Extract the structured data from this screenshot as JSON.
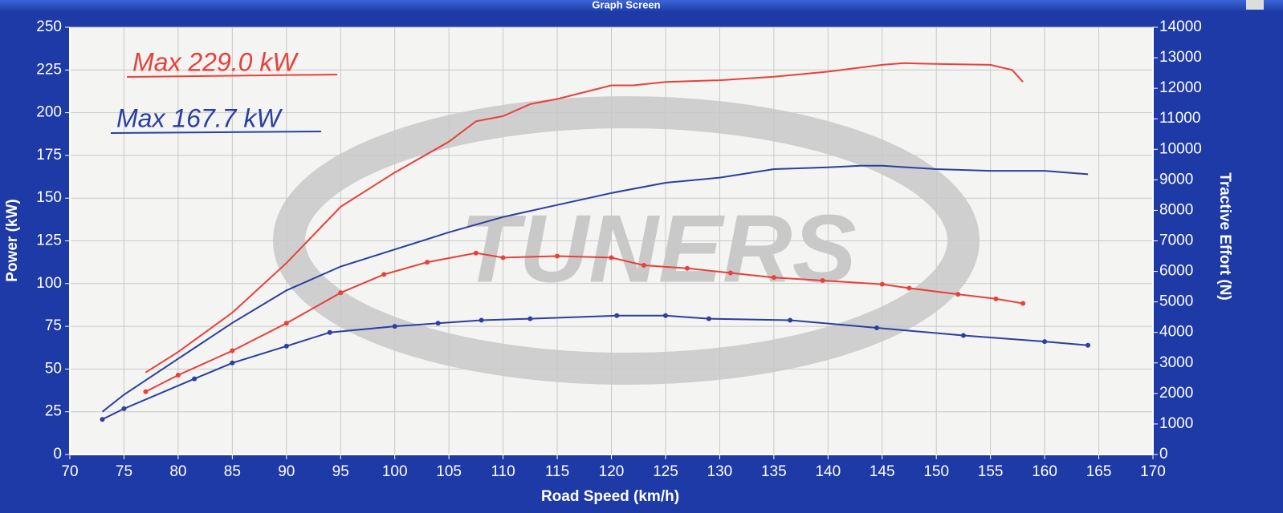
{
  "window_title": "Graph Screen",
  "chart_data": {
    "type": "line",
    "xlabel": "Road Speed (km/h)",
    "ylabel": "Power (kW)",
    "y2label": "Tractive Effort (N)",
    "watermark": "TUNERS",
    "annotations": [
      {
        "text": "Max 229.0 kW",
        "color": "#e8403a"
      },
      {
        "text": "Max 167.7 kW",
        "color": "#2a3fa0"
      }
    ],
    "xlim": [
      70,
      170
    ],
    "xticks": [
      70,
      75,
      80,
      85,
      90,
      95,
      100,
      105,
      110,
      115,
      120,
      125,
      130,
      135,
      140,
      145,
      150,
      155,
      160,
      165,
      170
    ],
    "ylim": [
      0,
      250
    ],
    "yticks": [
      0,
      25,
      50,
      75,
      100,
      125,
      150,
      175,
      200,
      225,
      250
    ],
    "y2lim": [
      0,
      14000
    ],
    "y2ticks": [
      0,
      1000,
      2000,
      3000,
      4000,
      5000,
      6000,
      7000,
      8000,
      9000,
      10000,
      11000,
      12000,
      13000,
      14000
    ],
    "grid": true,
    "series": [
      {
        "color": "#e8403a",
        "axis": "y",
        "markers": false,
        "x": [
          77,
          80,
          85,
          90,
          95,
          100,
          105,
          107.5,
          110,
          112.5,
          115,
          120,
          122,
          125,
          130,
          135,
          140,
          145,
          147,
          150,
          155,
          157,
          158
        ],
        "values": [
          48,
          60,
          83,
          112,
          145,
          165,
          183,
          195,
          198,
          205,
          208,
          216,
          216,
          218,
          219,
          221,
          224,
          228,
          229,
          228.5,
          228,
          225,
          218
        ]
      },
      {
        "color": "#2a3fa0",
        "axis": "y",
        "markers": false,
        "x": [
          73,
          75,
          80,
          85,
          90,
          95,
          100,
          105,
          110,
          115,
          120,
          125,
          130,
          135,
          140,
          143,
          145,
          150,
          155,
          160,
          164
        ],
        "values": [
          25,
          35,
          56,
          77,
          96,
          110,
          120,
          130,
          139,
          146,
          153,
          159,
          162,
          167,
          168,
          169,
          169,
          167,
          166,
          166,
          164
        ]
      },
      {
        "color": "#e8403a",
        "axis": "y2",
        "markers": true,
        "x": [
          77,
          80,
          85,
          90,
          95,
          99,
          103,
          107.5,
          110,
          115,
          120,
          123,
          127,
          131,
          135,
          139.5,
          145,
          147.5,
          152,
          155.5,
          158
        ],
        "values": [
          2060,
          2600,
          3400,
          4300,
          5300,
          5900,
          6300,
          6600,
          6450,
          6500,
          6450,
          6200,
          6100,
          5950,
          5800,
          5700,
          5580,
          5450,
          5250,
          5100,
          4950
        ]
      },
      {
        "color": "#2a3fa0",
        "axis": "y2",
        "markers": true,
        "x": [
          73,
          75,
          81.5,
          85,
          90,
          94,
          100,
          104,
          108,
          112.5,
          120.5,
          125,
          129,
          136.5,
          144.5,
          152.5,
          160,
          164
        ],
        "values": [
          1150,
          1500,
          2480,
          3000,
          3550,
          4000,
          4200,
          4300,
          4400,
          4450,
          4550,
          4550,
          4450,
          4400,
          4150,
          3900,
          3700,
          3580
        ]
      }
    ]
  }
}
